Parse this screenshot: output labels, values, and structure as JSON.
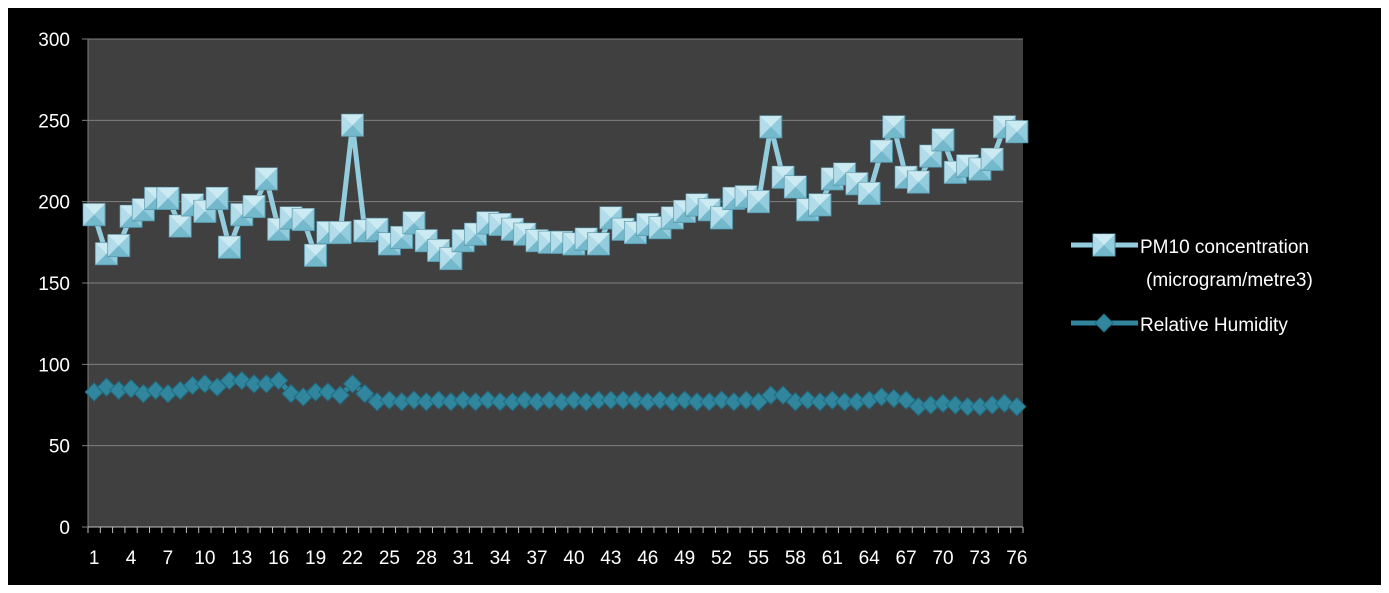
{
  "chart_data": {
    "type": "line",
    "title": "",
    "xlabel": "",
    "ylabel": "",
    "ylim": [
      0,
      300
    ],
    "y_ticks": [
      "0",
      "50",
      "100",
      "150",
      "200",
      "250",
      "300"
    ],
    "x_ticks": [
      "1",
      "4",
      "7",
      "10",
      "13",
      "16",
      "19",
      "22",
      "25",
      "28",
      "31",
      "34",
      "37",
      "40",
      "43",
      "46",
      "49",
      "52",
      "55",
      "58",
      "61",
      "64",
      "67",
      "70",
      "73",
      "76"
    ],
    "legend_position": "right",
    "grid": true,
    "colors": {
      "plot_background": "#404040",
      "outer_background": "#000000",
      "gridline": "#7f7f7f",
      "pm10": "#93cddd",
      "humidity": "#31859c"
    },
    "series": [
      {
        "name": "PM10 concentration (microgram/metre3)",
        "marker": "square",
        "values": [
          192,
          168,
          173,
          191,
          195,
          202,
          202,
          185,
          198,
          194,
          202,
          172,
          192,
          197,
          214,
          183,
          190,
          189,
          167,
          181,
          181,
          247,
          182,
          183,
          174,
          178,
          187,
          176,
          170,
          165,
          176,
          180,
          187,
          186,
          183,
          180,
          176,
          175,
          175,
          174,
          177,
          174,
          190,
          183,
          181,
          186,
          184,
          190,
          194,
          198,
          195,
          190,
          202,
          203,
          200,
          246,
          215,
          209,
          195,
          198,
          214,
          217,
          211,
          205,
          231,
          246,
          215,
          212,
          228,
          238,
          218,
          222,
          220,
          226,
          246,
          243
        ]
      },
      {
        "name": "Relative Humidity",
        "marker": "diamond",
        "values": [
          83,
          86,
          84,
          85,
          82,
          84,
          82,
          84,
          87,
          88,
          86,
          90,
          90,
          88,
          88,
          90,
          82,
          80,
          83,
          83,
          81,
          88,
          82,
          77,
          78,
          77,
          78,
          77,
          78,
          77,
          78,
          77,
          78,
          77,
          77,
          78,
          77,
          78,
          77,
          78,
          77,
          78,
          78,
          78,
          78,
          77,
          78,
          77,
          78,
          77,
          77,
          78,
          77,
          78,
          77,
          81,
          81,
          77,
          78,
          77,
          78,
          77,
          77,
          78,
          80,
          79,
          78,
          74,
          75,
          76,
          75,
          74,
          74,
          75,
          76,
          74
        ]
      }
    ]
  },
  "legend": {
    "pm10_line1": "PM10 concentration",
    "pm10_line2": "(microgram/metre3)",
    "humidity": "Relative Humidity"
  }
}
